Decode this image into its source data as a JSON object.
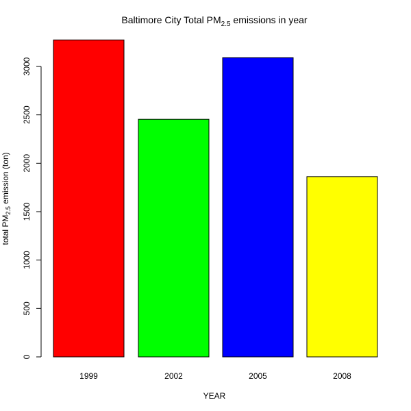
{
  "chart_data": {
    "type": "bar",
    "title": {
      "prefix": "Baltimore City Total PM",
      "subscript": "2.5",
      "suffix": " emissions in year"
    },
    "xlabel": "YEAR",
    "ylabel": {
      "prefix": "total PM",
      "subscript": "2.5",
      "suffix": " emission (ton)"
    },
    "categories": [
      "1999",
      "2002",
      "2005",
      "2008"
    ],
    "values": [
      3274,
      2454,
      3091,
      1862
    ],
    "colors": [
      "#ff0000",
      "#00ff00",
      "#0000ff",
      "#ffff00"
    ],
    "ylim": [
      0,
      3300
    ],
    "yticks": [
      0,
      500,
      1000,
      1500,
      2000,
      2500,
      3000
    ],
    "grid": false
  }
}
